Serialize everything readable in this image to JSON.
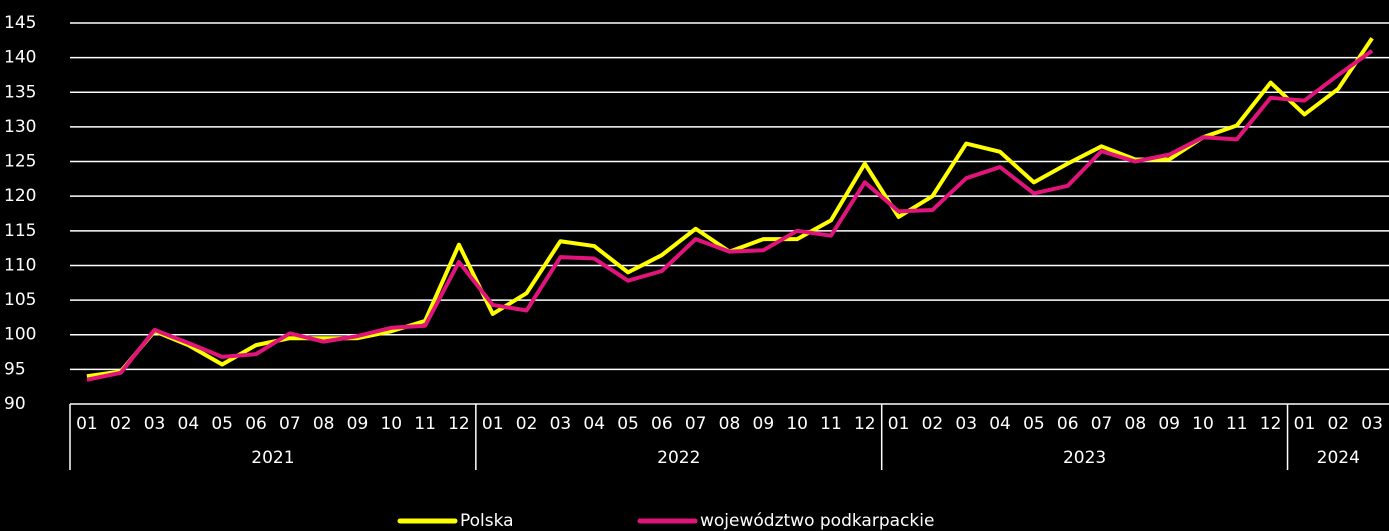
{
  "chart_data": {
    "type": "line",
    "categories": [
      "01",
      "02",
      "03",
      "04",
      "05",
      "06",
      "07",
      "08",
      "09",
      "10",
      "11",
      "12",
      "01",
      "02",
      "03",
      "04",
      "05",
      "06",
      "07",
      "08",
      "09",
      "10",
      "11",
      "12",
      "01",
      "02",
      "03",
      "04",
      "05",
      "06",
      "07",
      "08",
      "09",
      "10",
      "11",
      "12",
      "01",
      "02",
      "03"
    ],
    "groups": [
      {
        "label": "2021",
        "size": 12
      },
      {
        "label": "2022",
        "size": 12
      },
      {
        "label": "2023",
        "size": 12
      },
      {
        "label": "2024",
        "size": 3
      }
    ],
    "series": [
      {
        "name": "Polska",
        "color": "#ffff00",
        "values": [
          94,
          94.7,
          100.5,
          98.5,
          95.7,
          98.5,
          99.5,
          99.5,
          99.5,
          100.5,
          102,
          113,
          103,
          106,
          113.5,
          112.8,
          109,
          111.5,
          115.3,
          112,
          113.8,
          113.8,
          116.5,
          124.7,
          117,
          120,
          127.6,
          126.4,
          122,
          124.7,
          127.2,
          125.3,
          125.3,
          128.5,
          130.2,
          136.4,
          131.8,
          135.5,
          142.8
        ]
      },
      {
        "name": "województwo podkarpackie",
        "color": "#e0147a",
        "values": [
          93.5,
          94.5,
          100.7,
          98.8,
          96.8,
          97.2,
          100.2,
          99,
          99.8,
          101,
          101.3,
          110.5,
          104.3,
          103.5,
          111.2,
          111,
          107.8,
          109.2,
          113.8,
          112,
          112.2,
          115,
          114.3,
          122,
          117.8,
          118,
          122.6,
          124.2,
          120.4,
          121.5,
          126.5,
          125,
          126,
          128.5,
          128.2,
          134.2,
          133.8,
          137.5,
          141
        ]
      }
    ],
    "ylim": [
      90,
      145
    ],
    "yticks": [
      90,
      95,
      100,
      105,
      110,
      115,
      120,
      125,
      130,
      135,
      140,
      145
    ],
    "grid": true,
    "legend": "bottom"
  }
}
